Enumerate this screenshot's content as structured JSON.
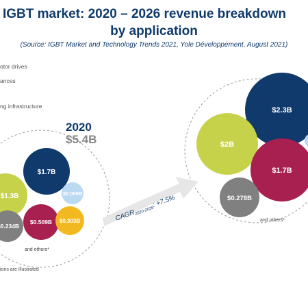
{
  "title": {
    "line1": "IGBT market: 2020 – 2026 revenue breakdown",
    "line2": "by application",
    "source": "(Source: IGBT Market and Technology Trends 2021, Yole Développement, August 2021)"
  },
  "legend": [
    {
      "label": "otor drives",
      "color": "#c6d34a"
    },
    {
      "label": "ances",
      "color": "#d0d0d0"
    },
    {
      "label": "ng infrastructure",
      "color": "#d0d0d0"
    }
  ],
  "chart_data": {
    "type": "bubble",
    "groups": [
      {
        "year": "2020",
        "total": "$5.4B",
        "bubbles": [
          {
            "label": "$1.7B",
            "color": "#0f3a6b"
          },
          {
            "label": "$1.3B",
            "color": "#c6d34a"
          },
          {
            "label": "$0.069B",
            "color": "#bcd9f2"
          },
          {
            "label": "$0.234B",
            "color": "#808080"
          },
          {
            "label": "$0.509B",
            "color": "#a8204f"
          },
          {
            "label": "$0.303B",
            "color": "#f2b81f"
          }
        ],
        "others_label": "and others*"
      },
      {
        "bubbles": [
          {
            "label": "$2.3B",
            "color": "#0f3a6b"
          },
          {
            "label": "$2B",
            "color": "#c6d34a"
          },
          {
            "label": "$1.7B",
            "color": "#a8204f"
          },
          {
            "label": "$0.278B",
            "color": "#808080"
          }
        ],
        "others_label": "and others*"
      }
    ],
    "cagr": {
      "prefix": "CAGR",
      "subscript": "2020-2026",
      "value": ": +7.5%"
    }
  },
  "footnote": "ions are illustrated"
}
